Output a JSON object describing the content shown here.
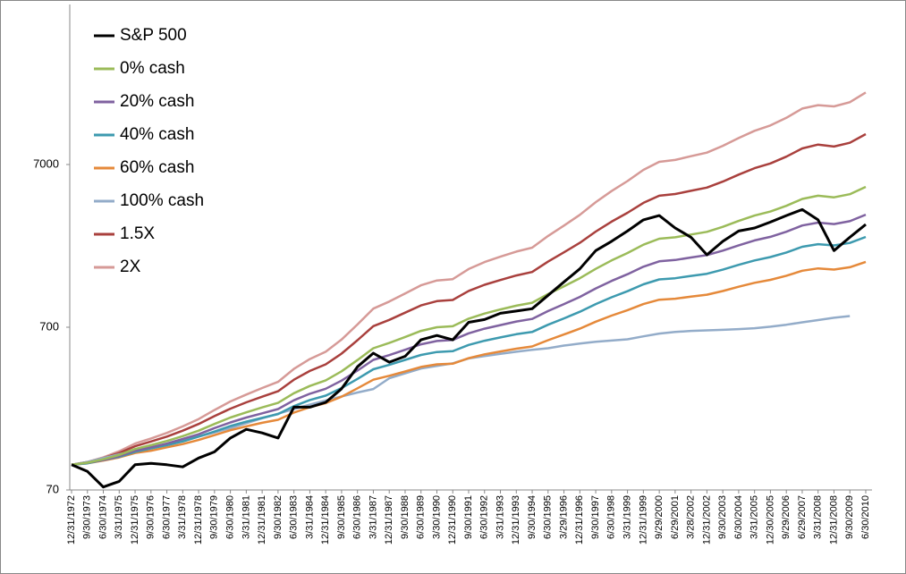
{
  "chart_data": {
    "type": "line",
    "log_scale": true,
    "legend": "upper left",
    "categories": [
      "12/31/1972",
      "9/30/1973",
      "6/30/1974",
      "3/31/1975",
      "12/31/1975",
      "9/30/1976",
      "6/30/1977",
      "3/31/1978",
      "12/31/1978",
      "9/30/1979",
      "6/30/1980",
      "3/31/1981",
      "12/31/1981",
      "9/30/1982",
      "6/30/1983",
      "3/31/1984",
      "12/31/1984",
      "9/30/1985",
      "6/30/1986",
      "3/31/1987",
      "12/31/1987",
      "9/30/1988",
      "6/30/1989",
      "3/30/1990",
      "12/31/1990",
      "9/30/1991",
      "6/30/1992",
      "3/31/1993",
      "12/31/1993",
      "9/30/1994",
      "6/30/1995",
      "3/29/1996",
      "12/31/1996",
      "9/30/1997",
      "6/30/1998",
      "3/31/1999",
      "12/31/1999",
      "9/29/2000",
      "6/29/2001",
      "3/28/2002",
      "12/31/2002",
      "9/30/2003",
      "6/30/2004",
      "3/31/2005",
      "12/30/2005",
      "9/29/2006",
      "6/29/2007",
      "3/31/2008",
      "12/31/2008",
      "9/30/2009",
      "6/30/2010"
    ],
    "ylim": [
      70,
      70000
    ],
    "yticks": [
      70,
      700,
      7000
    ],
    "series": [
      {
        "name": "S&P 500",
        "color": "#000000",
        "values": [
          100,
          91,
          73,
          79,
          100,
          102,
          100,
          97,
          110,
          120,
          146,
          165,
          157,
          146,
          226,
          226,
          242,
          293,
          400,
          485,
          427,
          464,
          586,
          623,
          586,
          750,
          780,
          853,
          880,
          910,
          1100,
          1330,
          1600,
          2070,
          2360,
          2730,
          3200,
          3400,
          2850,
          2500,
          1950,
          2360,
          2730,
          2850,
          3100,
          3400,
          3700,
          3200,
          2070,
          2500,
          3000
        ]
      },
      {
        "name": "0% cash",
        "color": "#9bbb59",
        "values": [
          100,
          103,
          108,
          115,
          125,
          132,
          140,
          150,
          162,
          178,
          195,
          210,
          225,
          240,
          275,
          305,
          330,
          375,
          440,
          520,
          560,
          610,
          665,
          700,
          710,
          790,
          850,
          900,
          950,
          990,
          1120,
          1250,
          1400,
          1600,
          1800,
          2000,
          2250,
          2450,
          2500,
          2600,
          2700,
          2900,
          3150,
          3400,
          3600,
          3900,
          4300,
          4500,
          4400,
          4600,
          5100
        ]
      },
      {
        "name": "20% cash",
        "color": "#7f62a0",
        "values": [
          100,
          103,
          107,
          113,
          122,
          128,
          135,
          144,
          154,
          168,
          182,
          195,
          207,
          220,
          249,
          273,
          293,
          329,
          379,
          441,
          472,
          509,
          550,
          576,
          584,
          642,
          686,
          722,
          759,
          787,
          880,
          971,
          1075,
          1212,
          1348,
          1482,
          1648,
          1779,
          1812,
          1877,
          1942,
          2071,
          2231,
          2390,
          2516,
          2704,
          2952,
          3076,
          3014,
          3137,
          3441
        ]
      },
      {
        "name": "40% cash",
        "color": "#3d9aaf",
        "values": [
          100,
          102,
          107,
          112,
          120,
          126,
          132,
          139,
          149,
          160,
          173,
          184,
          194,
          205,
          229,
          250,
          266,
          296,
          337,
          386,
          411,
          441,
          473,
          493,
          499,
          545,
          578,
          606,
          634,
          655,
          725,
          793,
          871,
          971,
          1070,
          1166,
          1285,
          1378,
          1401,
          1447,
          1492,
          1582,
          1693,
          1802,
          1889,
          2017,
          2185,
          2268,
          2227,
          2309,
          2513
        ]
      },
      {
        "name": "60% cash",
        "color": "#e5893a",
        "values": [
          100,
          102,
          106,
          111,
          118,
          122,
          128,
          134,
          142,
          152,
          163,
          172,
          181,
          189,
          209,
          226,
          239,
          262,
          295,
          333,
          352,
          374,
          399,
          414,
          418,
          452,
          477,
          497,
          517,
          533,
          583,
          632,
          686,
          757,
          825,
          891,
          971,
          1033,
          1048,
          1079,
          1109,
          1168,
          1241,
          1312,
          1368,
          1450,
          1558,
          1610,
          1584,
          1636,
          1764
        ]
      },
      {
        "name": "100% cash",
        "color": "#93acc9",
        "values": [
          100,
          104,
          110,
          116,
          122,
          128,
          134,
          141,
          149,
          158,
          168,
          180,
          193,
          206,
          220,
          234,
          248,
          263,
          278,
          292,
          340,
          365,
          390,
          405,
          420,
          450,
          465,
          480,
          495,
          508,
          520,
          540,
          555,
          570,
          580,
          590,
          615,
          640,
          655,
          665,
          670,
          675,
          682,
          690,
          705,
          725,
          750,
          775,
          800,
          820,
          null
        ]
      },
      {
        "name": "1.5X",
        "color": "#a9403d",
        "values": [
          100,
          104,
          110,
          118,
          130,
          139,
          149,
          162,
          178,
          199,
          221,
          242,
          262,
          283,
          333,
          377,
          414,
          482,
          583,
          711,
          777,
          860,
          953,
          1013,
          1030,
          1170,
          1277,
          1366,
          1457,
          1530,
          1772,
          2020,
          2312,
          2710,
          3118,
          3534,
          4066,
          4500,
          4609,
          4828,
          5050,
          5495,
          6065,
          6643,
          7111,
          7823,
          8786,
          9276,
          9031,
          9520,
          10765
        ]
      },
      {
        "name": "2X",
        "color": "#d69a97",
        "values": [
          100,
          104,
          111,
          121,
          135,
          145,
          157,
          172,
          191,
          217,
          245,
          270,
          296,
          323,
          388,
          446,
          495,
          588,
          728,
          911,
          1006,
          1128,
          1267,
          1357,
          1383,
          1595,
          1760,
          1900,
          2042,
          2159,
          2547,
          2950,
          3435,
          4108,
          4809,
          5538,
          6485,
          7268,
          7467,
          7873,
          8280,
          9113,
          10180,
          11277,
          12172,
          13554,
          15448,
          16219,
          15925,
          16908,
          19416
        ]
      }
    ]
  }
}
